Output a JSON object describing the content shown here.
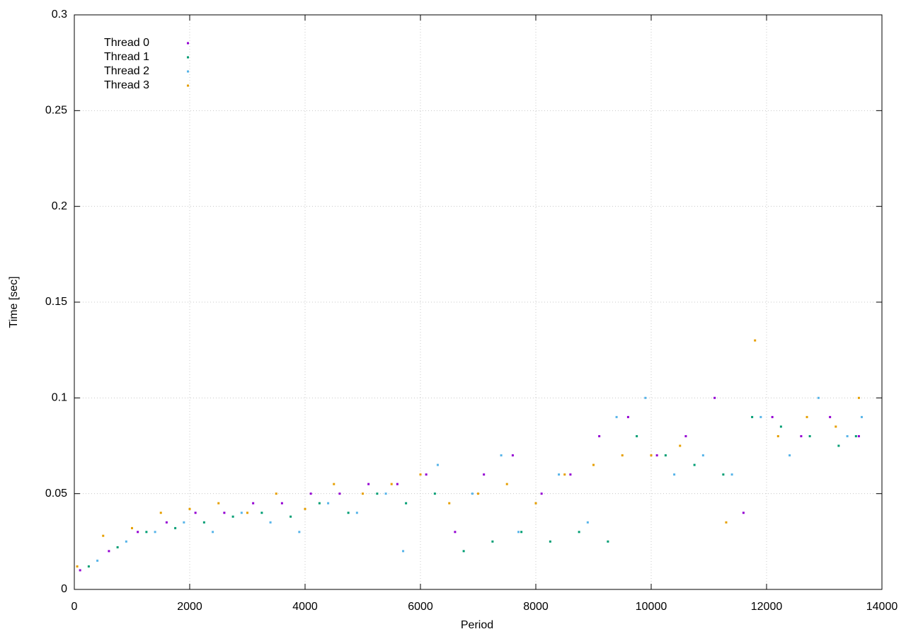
{
  "chart_data": {
    "type": "scatter",
    "xlabel": "Period",
    "ylabel": "Time [sec]",
    "xlim": [
      0,
      14000
    ],
    "xticks": [
      0,
      2000,
      4000,
      6000,
      8000,
      10000,
      12000,
      14000
    ],
    "ylim": [
      0,
      0.3
    ],
    "yticks": [
      0,
      0.05,
      0.1,
      0.15,
      0.2,
      0.25,
      0.3
    ],
    "grid": true,
    "legend": "top-left",
    "series": [
      {
        "name": "Thread 0",
        "color": "#9400d3",
        "x": [
          100,
          600,
          1100,
          1600,
          2100,
          2600,
          3100,
          3600,
          4100,
          4600,
          5100,
          5600,
          6100,
          6600,
          7100,
          7600,
          8100,
          8600,
          9100,
          9600,
          10100,
          10600,
          11100,
          11600,
          12100,
          12600,
          13100,
          13600
        ],
        "values": [
          0.01,
          0.02,
          0.03,
          0.035,
          0.04,
          0.04,
          0.045,
          0.045,
          0.05,
          0.05,
          0.055,
          0.055,
          0.06,
          0.03,
          0.06,
          0.07,
          0.05,
          0.06,
          0.08,
          0.09,
          0.07,
          0.08,
          0.1,
          0.04,
          0.09,
          0.08,
          0.09,
          0.08
        ]
      },
      {
        "name": "Thread 1",
        "color": "#009e73",
        "x": [
          250,
          750,
          1250,
          1750,
          2250,
          2750,
          3250,
          3750,
          4250,
          4750,
          5250,
          5750,
          6250,
          6750,
          7250,
          7750,
          8250,
          8750,
          9250,
          9750,
          10250,
          10750,
          11250,
          11750,
          12250,
          12750,
          13250,
          13550
        ],
        "values": [
          0.012,
          0.022,
          0.03,
          0.032,
          0.035,
          0.038,
          0.04,
          0.038,
          0.045,
          0.04,
          0.05,
          0.045,
          0.05,
          0.02,
          0.025,
          0.03,
          0.025,
          0.03,
          0.025,
          0.08,
          0.07,
          0.065,
          0.06,
          0.09,
          0.085,
          0.08,
          0.075,
          0.08
        ]
      },
      {
        "name": "Thread 2",
        "color": "#56b4e9",
        "x": [
          400,
          900,
          1400,
          1900,
          2400,
          2900,
          3400,
          3900,
          4400,
          4900,
          5400,
          5700,
          6300,
          6900,
          7400,
          7700,
          8400,
          8900,
          9400,
          9900,
          10400,
          10900,
          11400,
          11900,
          12400,
          12900,
          13400,
          13650
        ],
        "values": [
          0.015,
          0.025,
          0.03,
          0.035,
          0.03,
          0.04,
          0.035,
          0.03,
          0.045,
          0.04,
          0.05,
          0.02,
          0.065,
          0.05,
          0.07,
          0.03,
          0.06,
          0.035,
          0.09,
          0.1,
          0.06,
          0.07,
          0.06,
          0.09,
          0.07,
          0.1,
          0.08,
          0.09
        ]
      },
      {
        "name": "Thread 3",
        "color": "#e69f00",
        "x": [
          50,
          500,
          1000,
          1500,
          2000,
          2500,
          3000,
          3500,
          4000,
          4500,
          5000,
          5500,
          6000,
          6500,
          7000,
          7500,
          8000,
          8500,
          9000,
          9500,
          10000,
          10500,
          11300,
          11800,
          12200,
          12700,
          13200,
          13600
        ],
        "values": [
          0.012,
          0.028,
          0.032,
          0.04,
          0.042,
          0.045,
          0.04,
          0.05,
          0.042,
          0.055,
          0.05,
          0.055,
          0.06,
          0.045,
          0.05,
          0.055,
          0.045,
          0.06,
          0.065,
          0.07,
          0.07,
          0.075,
          0.035,
          0.13,
          0.08,
          0.09,
          0.085,
          0.1
        ]
      }
    ]
  }
}
